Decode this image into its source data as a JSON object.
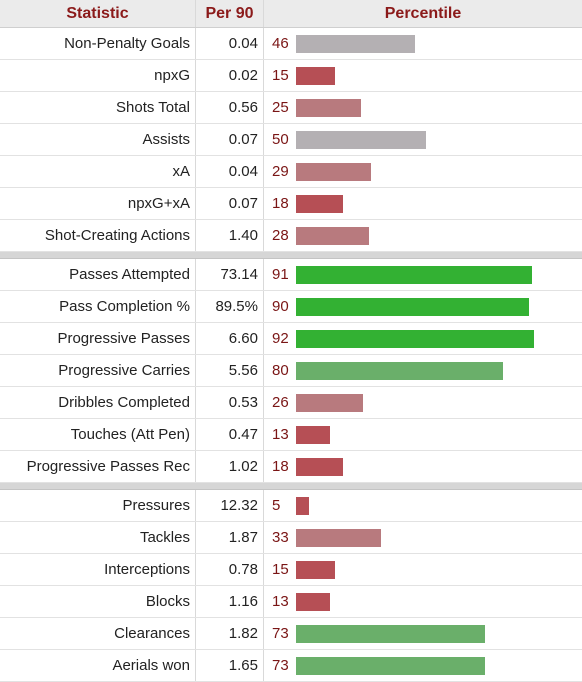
{
  "header": {
    "statistic": "Statistic",
    "per90": "Per 90",
    "percentile": "Percentile"
  },
  "colors": {
    "header_text": "#8b1a1a",
    "high": "#33b133",
    "above_avg": "#6aaf6a",
    "average": "#b4b0b3",
    "below_avg": "#b87a7e",
    "low": "#b64f55"
  },
  "chart_data": {
    "type": "bar",
    "orientation": "horizontal",
    "xlim": [
      0,
      100
    ],
    "groups": [
      {
        "rows": [
          {
            "stat": "Non-Penalty Goals",
            "per90": "0.04",
            "percentile": 46
          },
          {
            "stat": "npxG",
            "per90": "0.02",
            "percentile": 15
          },
          {
            "stat": "Shots Total",
            "per90": "0.56",
            "percentile": 25
          },
          {
            "stat": "Assists",
            "per90": "0.07",
            "percentile": 50
          },
          {
            "stat": "xA",
            "per90": "0.04",
            "percentile": 29
          },
          {
            "stat": "npxG+xA",
            "per90": "0.07",
            "percentile": 18
          },
          {
            "stat": "Shot-Creating Actions",
            "per90": "1.40",
            "percentile": 28
          }
        ]
      },
      {
        "rows": [
          {
            "stat": "Passes Attempted",
            "per90": "73.14",
            "percentile": 91
          },
          {
            "stat": "Pass Completion %",
            "per90": "89.5%",
            "percentile": 90
          },
          {
            "stat": "Progressive Passes",
            "per90": "6.60",
            "percentile": 92
          },
          {
            "stat": "Progressive Carries",
            "per90": "5.56",
            "percentile": 80
          },
          {
            "stat": "Dribbles Completed",
            "per90": "0.53",
            "percentile": 26
          },
          {
            "stat": "Touches (Att Pen)",
            "per90": "0.47",
            "percentile": 13
          },
          {
            "stat": "Progressive Passes Rec",
            "per90": "1.02",
            "percentile": 18
          }
        ]
      },
      {
        "rows": [
          {
            "stat": "Pressures",
            "per90": "12.32",
            "percentile": 5
          },
          {
            "stat": "Tackles",
            "per90": "1.87",
            "percentile": 33
          },
          {
            "stat": "Interceptions",
            "per90": "0.78",
            "percentile": 15
          },
          {
            "stat": "Blocks",
            "per90": "1.16",
            "percentile": 13
          },
          {
            "stat": "Clearances",
            "per90": "1.82",
            "percentile": 73
          },
          {
            "stat": "Aerials won",
            "per90": "1.65",
            "percentile": 73
          }
        ]
      }
    ]
  }
}
